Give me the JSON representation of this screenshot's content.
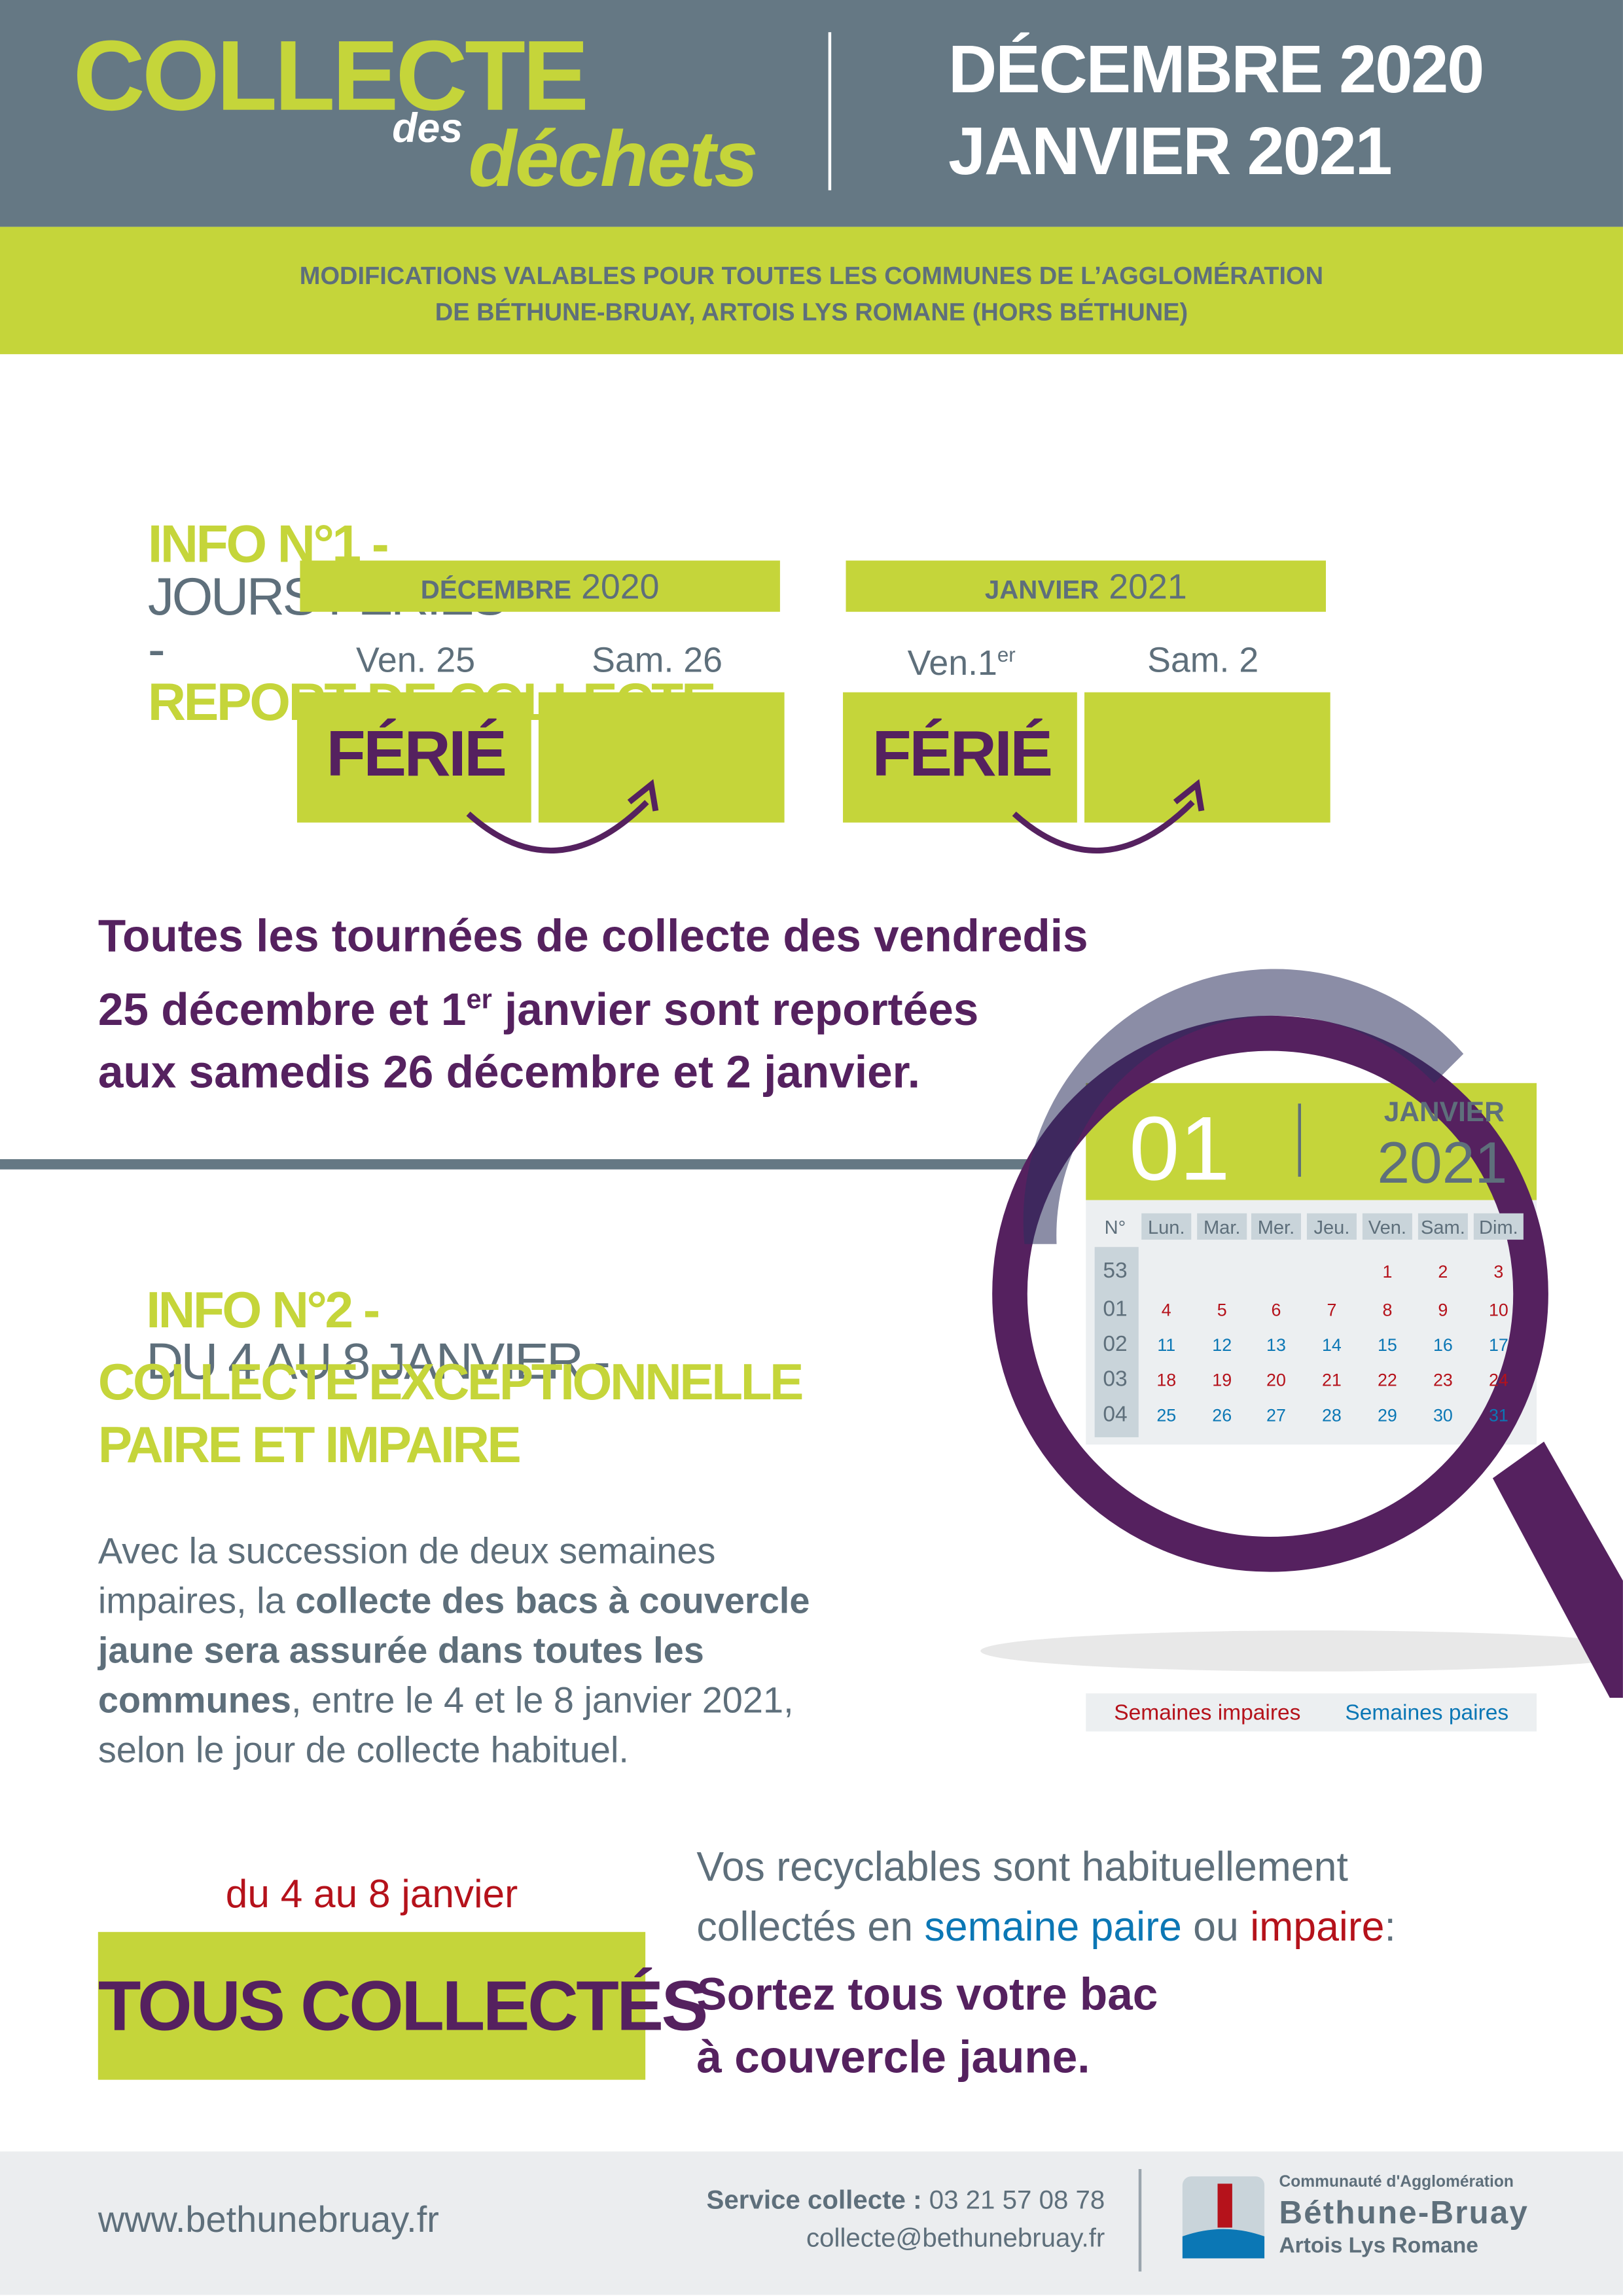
{
  "header": {
    "title": "COLLECTE",
    "title_small": "des",
    "title_italic": "déchets",
    "period_1": "DÉCEMBRE 2020",
    "period_2": "JANVIER 2021"
  },
  "banner": {
    "lines": [
      "MODIFICATIONS VALABLES POUR TOUTES LES COMMUNES DE L’AGGLOMÉRATION",
      "DE BÉTHUNE-BRUAY, ARTOIS LYS ROMANE (HORS BÉTHUNE)"
    ]
  },
  "info1": {
    "label": "INFO N°1 -",
    "topic": "JOURS FÉRIÉS",
    "separator": "-",
    "headline": "REPORT DE COLLECTE",
    "calendars": [
      {
        "month": "DÉCEMBRE",
        "year": "2020",
        "days": [
          {
            "label": "Ven. 25"
          },
          {
            "label": "Sam. 26"
          }
        ],
        "holiday": "FÉRIÉ"
      },
      {
        "month": "JANVIER",
        "year": "2021",
        "days": [
          {
            "label": "Ven.1",
            "sup": "er"
          },
          {
            "label": "Sam. 2"
          }
        ],
        "holiday": "FÉRIÉ"
      }
    ],
    "text": [
      [
        {
          "text": "Toutes les tournées de collecte des vendredis"
        }
      ],
      [
        {
          "text": "25 décembre et 1"
        },
        {
          "text": "er",
          "sup": true
        },
        {
          "text": " janvier sont reportées"
        }
      ],
      [
        {
          "text": "aux samedis 26 décembre et 2 janvier."
        }
      ]
    ]
  },
  "calendar": {
    "month_number": "01",
    "month": "JANVIER",
    "year": "2021",
    "week_header": "N°",
    "weekdays": [
      "Lun.",
      "Mar.",
      "Mer.",
      "Jeu.",
      "Ven.",
      "Sam.",
      "Dim."
    ],
    "weeks": [
      {
        "number": "53",
        "color": "#b5121b",
        "days": [
          null,
          null,
          null,
          null,
          1,
          2,
          3
        ]
      },
      {
        "number": "01",
        "color": "#b5121b",
        "days": [
          4,
          5,
          6,
          7,
          8,
          9,
          10
        ]
      },
      {
        "number": "02",
        "color": "#0b77b5",
        "days": [
          11,
          12,
          13,
          14,
          15,
          16,
          17
        ]
      },
      {
        "number": "03",
        "color": "#b5121b",
        "days": [
          18,
          19,
          20,
          21,
          22,
          23,
          24
        ]
      },
      {
        "number": "04",
        "color": "#0b77b5",
        "days": [
          25,
          26,
          27,
          28,
          29,
          30,
          31
        ]
      }
    ],
    "legend": [
      {
        "label": "Semaines impaires",
        "color": "#b5121b"
      },
      {
        "label": "Semaines paires",
        "color": "#0b77b5"
      }
    ]
  },
  "info2": {
    "label": "INFO N°2 -",
    "dates": "DU 4 AU 8 JANVIER -",
    "headline_1": "COLLECTE EXCEPTIONNELLE",
    "headline_2": "PAIRE ET IMPAIRE",
    "paragraph": [
      [
        {
          "text": "Avec la succession de deux semaines"
        }
      ],
      [
        {
          "text": "impaires, la "
        },
        {
          "text": "collecte des bacs à couvercle",
          "bold": true
        }
      ],
      [
        {
          "text": "jaune sera assurée dans toutes les",
          "bold": true
        }
      ],
      [
        {
          "text": "communes",
          "bold": true
        },
        {
          "text": ", entre le 4 et le 8 janvier 2021,"
        }
      ],
      [
        {
          "text": "selon le jour de collecte habituel."
        }
      ]
    ]
  },
  "summary": {
    "dates": "du 4 au 8 janvier",
    "badge": "TOUS COLLECTÉS",
    "reminder": [
      [
        {
          "text": "Vos recyclables sont habituellement"
        }
      ],
      [
        {
          "text": "collectés en "
        },
        {
          "text": "semaine paire",
          "color": "#0b77b5"
        },
        {
          "text": " ou "
        },
        {
          "text": "impaire",
          "color": "#b5121b"
        },
        {
          "text": ":"
        }
      ]
    ],
    "action": [
      "Sortez tous votre bac",
      "à couvercle jaune."
    ]
  },
  "footer": {
    "website": "www.bethunebruay.fr",
    "service_label": "Service collecte :",
    "phone": "03 21 57 08 78",
    "email": "collecte@bethunebruay.fr",
    "logo": {
      "line_1": "Communauté d'Agglomération",
      "line_2": "Béthune-Bruay",
      "line_3": "Artois Lys Romane"
    }
  }
}
